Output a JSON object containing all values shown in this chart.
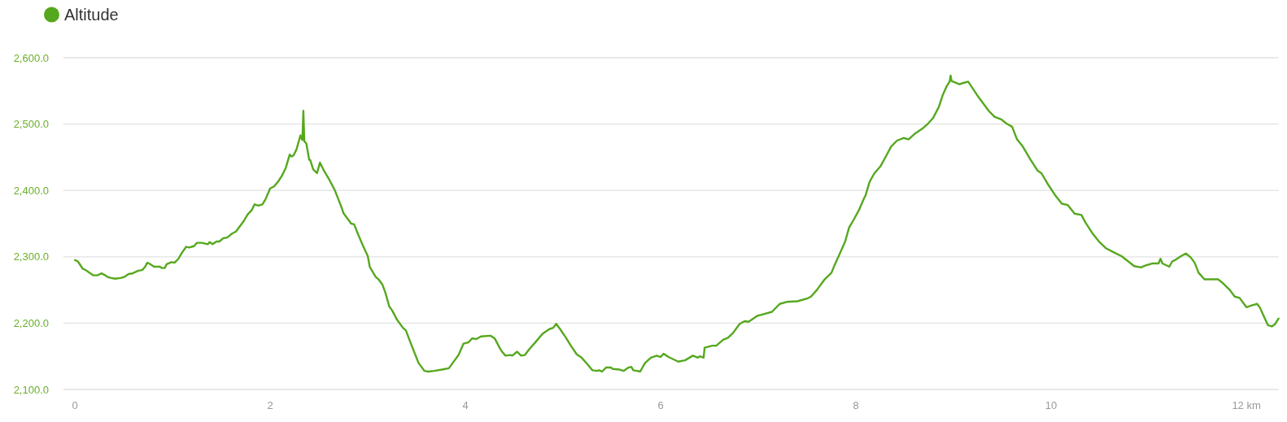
{
  "chart_data": {
    "type": "line",
    "x": [
      0,
      0.03,
      0.08,
      0.11,
      0.15,
      0.19,
      0.23,
      0.27,
      0.3,
      0.33,
      0.37,
      0.41,
      0.47,
      0.51,
      0.55,
      0.59,
      0.65,
      0.69,
      0.72,
      0.74,
      0.77,
      0.81,
      0.87,
      0.89,
      0.92,
      0.94,
      0.99,
      1.02,
      1.06,
      1.1,
      1.14,
      1.17,
      1.22,
      1.25,
      1.3,
      1.36,
      1.38,
      1.41,
      1.45,
      1.48,
      1.52,
      1.56,
      1.61,
      1.65,
      1.69,
      1.73,
      1.77,
      1.81,
      1.84,
      1.88,
      1.92,
      1.95,
      2.0,
      2.04,
      2.08,
      2.12,
      2.16,
      2.2,
      2.22,
      2.24,
      2.27,
      2.31,
      2.33,
      2.34,
      2.35,
      2.37,
      2.4,
      2.41,
      2.44,
      2.48,
      2.51,
      2.55,
      2.61,
      2.66,
      2.73,
      2.75,
      2.83,
      2.86,
      2.9,
      2.95,
      3.0,
      3.02,
      3.08,
      3.11,
      3.15,
      3.18,
      3.22,
      3.25,
      3.3,
      3.36,
      3.39,
      3.45,
      3.52,
      3.58,
      3.62,
      3.68,
      3.76,
      3.83,
      3.89,
      3.93,
      3.98,
      4.03,
      4.07,
      4.11,
      4.16,
      4.26,
      4.3,
      4.35,
      4.37,
      4.41,
      4.46,
      4.48,
      4.53,
      4.57,
      4.61,
      4.65,
      4.71,
      4.79,
      4.86,
      4.9,
      4.93,
      4.97,
      5.03,
      5.08,
      5.14,
      5.19,
      5.25,
      5.3,
      5.35,
      5.37,
      5.4,
      5.44,
      5.49,
      5.51,
      5.58,
      5.62,
      5.67,
      5.7,
      5.72,
      5.76,
      5.79,
      5.84,
      5.9,
      5.96,
      6.0,
      6.03,
      6.08,
      6.18,
      6.25,
      6.33,
      6.38,
      6.4,
      6.44,
      6.45,
      6.53,
      6.57,
      6.64,
      6.69,
      6.74,
      6.81,
      6.86,
      6.9,
      6.99,
      7.04,
      7.14,
      7.22,
      7.29,
      7.4,
      7.5,
      7.54,
      7.6,
      7.68,
      7.75,
      7.78,
      7.83,
      7.89,
      7.93,
      7.97,
      8.03,
      8.08,
      8.1,
      8.14,
      8.19,
      8.25,
      8.31,
      8.36,
      8.42,
      8.49,
      8.54,
      8.6,
      8.68,
      8.74,
      8.79,
      8.85,
      8.89,
      8.93,
      8.96,
      8.97,
      8.98,
      9.06,
      9.1,
      9.15,
      9.24,
      9.32,
      9.36,
      9.42,
      9.49,
      9.54,
      9.6,
      9.65,
      9.71,
      9.79,
      9.86,
      9.9,
      9.96,
      10.04,
      10.11,
      10.17,
      10.24,
      10.31,
      10.35,
      10.42,
      10.49,
      10.56,
      10.65,
      10.72,
      10.79,
      10.85,
      10.92,
      10.97,
      11.04,
      11.1,
      11.12,
      11.14,
      11.21,
      11.24,
      11.28,
      11.33,
      11.38,
      11.43,
      11.47,
      11.51,
      11.57,
      11.63,
      11.71,
      11.76,
      11.83,
      11.88,
      11.93,
      12.0,
      12.06,
      12.11,
      12.14,
      12.17,
      12.22,
      12.26,
      12.29,
      12.33
    ],
    "series": [
      {
        "name": "Altitude",
        "color": "#55a81e",
        "values": [
          2295,
          2293,
          2282,
          2280,
          2276,
          2272,
          2272,
          2275,
          2273,
          2270,
          2268,
          2267,
          2268,
          2270,
          2274,
          2275,
          2279,
          2280,
          2285,
          2291,
          2289,
          2285,
          2285,
          2283,
          2283,
          2289,
          2292,
          2291,
          2297,
          2307,
          2315,
          2314,
          2316,
          2321,
          2321,
          2319,
          2322,
          2319,
          2323,
          2323,
          2328,
          2329,
          2335,
          2338,
          2346,
          2354,
          2364,
          2370,
          2379,
          2377,
          2379,
          2386,
          2403,
          2406,
          2413,
          2422,
          2434,
          2454,
          2451,
          2453,
          2462,
          2483,
          2476,
          2520,
          2474,
          2471,
          2446,
          2446,
          2432,
          2426,
          2442,
          2430,
          2415,
          2401,
          2375,
          2366,
          2350,
          2349,
          2334,
          2317,
          2301,
          2285,
          2270,
          2266,
          2258,
          2246,
          2225,
          2219,
          2205,
          2193,
          2189,
          2166,
          2140,
          2128,
          2127,
          2128,
          2130,
          2132,
          2144,
          2152,
          2169,
          2171,
          2177,
          2176,
          2180,
          2181,
          2177,
          2163,
          2158,
          2151,
          2152,
          2151,
          2157,
          2151,
          2152,
          2160,
          2170,
          2184,
          2191,
          2193,
          2199,
          2191,
          2178,
          2166,
          2153,
          2148,
          2138,
          2129,
          2128,
          2129,
          2127,
          2133,
          2133,
          2131,
          2130,
          2128,
          2133,
          2134,
          2129,
          2128,
          2127,
          2140,
          2148,
          2151,
          2149,
          2154,
          2149,
          2142,
          2144,
          2151,
          2148,
          2150,
          2148,
          2163,
          2166,
          2166,
          2175,
          2178,
          2185,
          2199,
          2203,
          2202,
          2211,
          2213,
          2217,
          2229,
          2232,
          2233,
          2237,
          2240,
          2250,
          2266,
          2276,
          2287,
          2303,
          2323,
          2344,
          2354,
          2370,
          2387,
          2393,
          2413,
          2426,
          2436,
          2452,
          2466,
          2475,
          2479,
          2477,
          2485,
          2493,
          2501,
          2509,
          2526,
          2544,
          2557,
          2564,
          2573,
          2565,
          2560,
          2562,
          2564,
          2544,
          2528,
          2520,
          2511,
          2507,
          2501,
          2496,
          2477,
          2466,
          2446,
          2430,
          2426,
          2411,
          2393,
          2380,
          2378,
          2365,
          2363,
          2352,
          2336,
          2323,
          2313,
          2306,
          2301,
          2293,
          2286,
          2284,
          2287,
          2290,
          2290,
          2297,
          2290,
          2285,
          2293,
          2296,
          2301,
          2305,
          2299,
          2291,
          2276,
          2266,
          2266,
          2266,
          2260,
          2250,
          2240,
          2238,
          2224,
          2227,
          2229,
          2223,
          2213,
          2197,
          2195,
          2198,
          2207
        ]
      }
    ],
    "xlim": [
      -0.12,
      12.33
    ],
    "xticks": [
      0,
      2,
      4,
      6,
      8,
      10,
      {
        "value": 12,
        "label": "12 km"
      }
    ],
    "ylim": [
      2100,
      2600
    ],
    "yticks": [
      {
        "value": 2100,
        "label": "2,100.0"
      },
      {
        "value": 2200,
        "label": "2,200.0"
      },
      {
        "value": 2300,
        "label": "2,300.0"
      },
      {
        "value": 2400,
        "label": "2,400.0"
      },
      {
        "value": 2500,
        "label": "2,500.0"
      },
      {
        "value": 2600,
        "label": "2,600.0"
      }
    ],
    "grid": "y",
    "legend": "top left"
  }
}
